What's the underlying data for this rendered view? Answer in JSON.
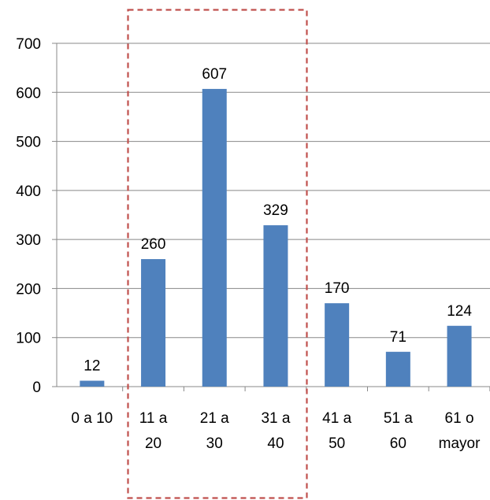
{
  "chart_data": {
    "type": "bar",
    "categories": [
      [
        "0 a 10"
      ],
      [
        "11 a",
        "20"
      ],
      [
        "21 a",
        "30"
      ],
      [
        "31 a",
        "40"
      ],
      [
        "41 a",
        "50"
      ],
      [
        "51 a",
        "60"
      ],
      [
        "61 o",
        "mayor"
      ]
    ],
    "values": [
      12,
      260,
      607,
      329,
      170,
      71,
      124
    ],
    "data_labels": [
      "12",
      "260",
      "607",
      "329",
      "170",
      "71",
      "124"
    ],
    "y_ticks": [
      "0",
      "100",
      "200",
      "300",
      "400",
      "500",
      "600",
      "700"
    ],
    "ylim": [
      0,
      700
    ],
    "grid": true,
    "legend": "none",
    "highlight": {
      "style": "dashed-box",
      "categories": [
        "11 a 20",
        "21 a 30",
        "31 a 40"
      ]
    },
    "colors": {
      "bar": "#4f81bd",
      "grid": "#888888",
      "axis": "#888888",
      "highlight": "#c0504d"
    }
  }
}
